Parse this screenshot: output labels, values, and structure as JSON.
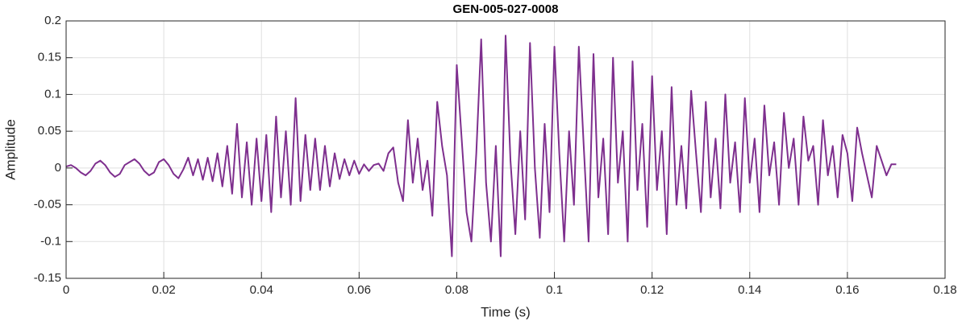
{
  "chart_data": {
    "type": "line",
    "title": "GEN-005-027-0008",
    "x_label": "Time (s)",
    "y_label": "Amplitude",
    "color": "#7e2f8e",
    "grid": true,
    "xlim": [
      0,
      0.18
    ],
    "ylim": [
      -0.15,
      0.2
    ],
    "xticks": [
      0,
      0.02,
      0.04,
      0.06,
      0.08,
      0.1,
      0.12,
      0.14,
      0.16,
      0.18
    ],
    "yticks": [
      -0.15,
      -0.1,
      -0.05,
      0,
      0.05,
      0.1,
      0.15,
      0.2
    ],
    "x": [
      0,
      0.001,
      0.002,
      0.003,
      0.004,
      0.005,
      0.006,
      0.007,
      0.008,
      0.009,
      0.01,
      0.011,
      0.012,
      0.013,
      0.014,
      0.015,
      0.016,
      0.017,
      0.018,
      0.019,
      0.02,
      0.021,
      0.022,
      0.023,
      0.024,
      0.025,
      0.026,
      0.027,
      0.028,
      0.029,
      0.03,
      0.031,
      0.032,
      0.033,
      0.034,
      0.035,
      0.036,
      0.037,
      0.038,
      0.039,
      0.04,
      0.041,
      0.042,
      0.043,
      0.044,
      0.045,
      0.046,
      0.047,
      0.048,
      0.049,
      0.05,
      0.051,
      0.052,
      0.053,
      0.054,
      0.055,
      0.056,
      0.057,
      0.058,
      0.059,
      0.06,
      0.061,
      0.062,
      0.063,
      0.064,
      0.065,
      0.066,
      0.067,
      0.068,
      0.069,
      0.07,
      0.071,
      0.072,
      0.073,
      0.074,
      0.075,
      0.076,
      0.077,
      0.078,
      0.079,
      0.08,
      0.081,
      0.082,
      0.083,
      0.084,
      0.085,
      0.086,
      0.087,
      0.088,
      0.089,
      0.09,
      0.091,
      0.092,
      0.093,
      0.094,
      0.095,
      0.096,
      0.097,
      0.098,
      0.099,
      0.1,
      0.101,
      0.102,
      0.103,
      0.104,
      0.105,
      0.106,
      0.107,
      0.108,
      0.109,
      0.11,
      0.111,
      0.112,
      0.113,
      0.114,
      0.115,
      0.116,
      0.117,
      0.118,
      0.119,
      0.12,
      0.121,
      0.122,
      0.123,
      0.124,
      0.125,
      0.126,
      0.127,
      0.128,
      0.129,
      0.13,
      0.131,
      0.132,
      0.133,
      0.134,
      0.135,
      0.136,
      0.137,
      0.138,
      0.139,
      0.14,
      0.141,
      0.142,
      0.143,
      0.144,
      0.145,
      0.146,
      0.147,
      0.148,
      0.149,
      0.15,
      0.151,
      0.152,
      0.153,
      0.154,
      0.155,
      0.156,
      0.157,
      0.158,
      0.159,
      0.16,
      0.161,
      0.162,
      0.163,
      0.164,
      0.165,
      0.166,
      0.167,
      0.168,
      0.169,
      0.17
    ],
    "values": [
      0.002,
      0.004,
      0,
      -0.006,
      -0.01,
      -0.004,
      0.006,
      0.01,
      0.004,
      -0.006,
      -0.012,
      -0.008,
      0.004,
      0.008,
      0.012,
      0.006,
      -0.004,
      -0.01,
      -0.006,
      0.008,
      0.012,
      0.004,
      -0.008,
      -0.014,
      -0.002,
      0.014,
      -0.01,
      0.012,
      -0.016,
      0.014,
      -0.018,
      0.02,
      -0.025,
      0.03,
      -0.035,
      0.06,
      -0.04,
      0.035,
      -0.05,
      0.04,
      -0.045,
      0.045,
      -0.06,
      0.07,
      -0.04,
      0.05,
      -0.05,
      0.095,
      -0.045,
      0.045,
      -0.03,
      0.04,
      -0.03,
      0.03,
      -0.025,
      0.02,
      -0.015,
      0.012,
      -0.01,
      0.01,
      -0.008,
      0.005,
      -0.004,
      0.004,
      0.006,
      -0.004,
      0.02,
      0.028,
      -0.02,
      -0.045,
      0.065,
      -0.02,
      0.04,
      -0.03,
      0.01,
      -0.065,
      0.09,
      0.03,
      -0.01,
      -0.12,
      0.14,
      0.04,
      -0.06,
      -0.1,
      0.02,
      0.175,
      -0.02,
      -0.1,
      0.03,
      -0.12,
      0.18,
      0.01,
      -0.09,
      0.05,
      -0.07,
      0.17,
      0,
      -0.095,
      0.06,
      -0.06,
      0.165,
      0.02,
      -0.1,
      0.05,
      -0.05,
      0.165,
      0.03,
      -0.1,
      0.155,
      -0.04,
      0.04,
      -0.09,
      0.15,
      -0.02,
      0.05,
      -0.1,
      0.145,
      -0.03,
      0.06,
      -0.08,
      0.125,
      -0.03,
      0.05,
      -0.09,
      0.11,
      -0.05,
      0.03,
      -0.055,
      0.105,
      0.02,
      -0.06,
      0.09,
      -0.04,
      0.04,
      -0.055,
      0.1,
      -0.02,
      0.035,
      -0.06,
      0.095,
      -0.02,
      0.04,
      -0.06,
      0.085,
      -0.01,
      0.035,
      -0.05,
      0.075,
      0,
      0.04,
      -0.05,
      0.07,
      0.01,
      0.03,
      -0.05,
      0.065,
      -0.01,
      0.03,
      -0.04,
      0.045,
      0.02,
      -0.045,
      0.055,
      0.02,
      -0.01,
      -0.04,
      0.03,
      0.01,
      -0.01,
      0.005,
      0.005
    ]
  }
}
